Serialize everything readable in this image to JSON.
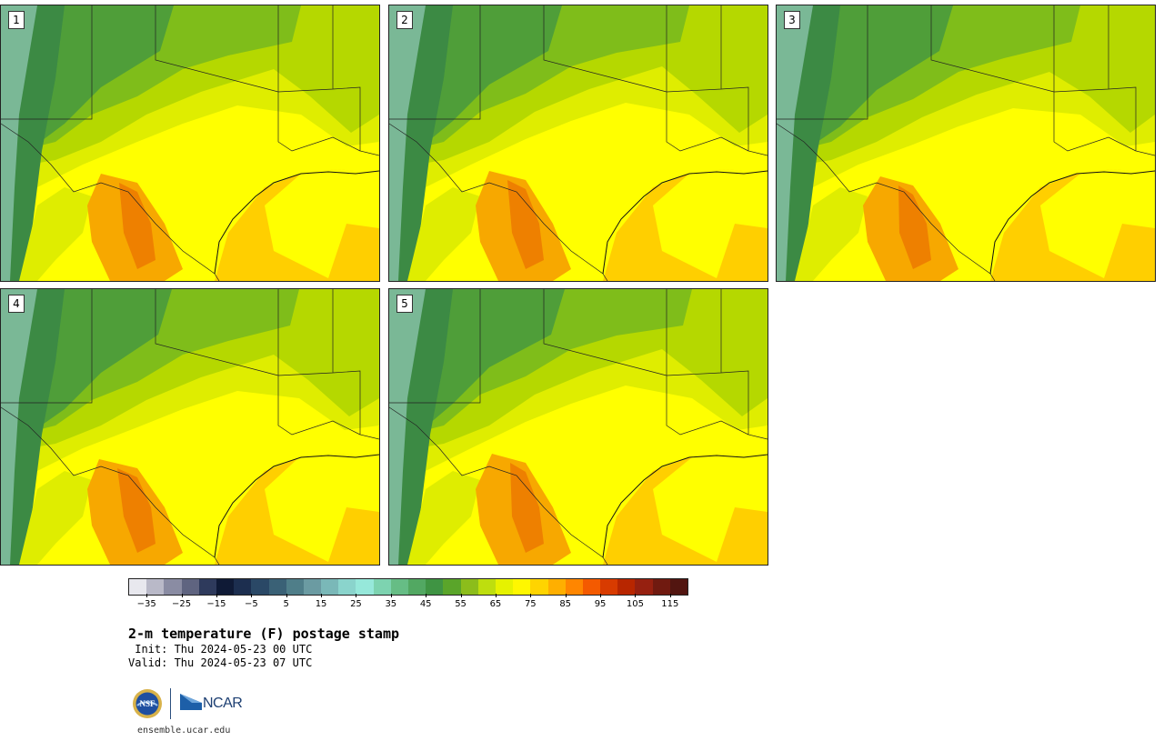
{
  "panels": [
    {
      "label": "1"
    },
    {
      "label": "2"
    },
    {
      "label": "3"
    },
    {
      "label": "4"
    },
    {
      "label": "5"
    }
  ],
  "colorbar": {
    "colors": [
      "#e8e8ee",
      "#b9b9c8",
      "#8a8ca3",
      "#5f6480",
      "#2e3a5c",
      "#0f1a36",
      "#1c2e4f",
      "#2a4866",
      "#3a6176",
      "#4f7e89",
      "#6b9ba2",
      "#7ab8b8",
      "#8ad4cc",
      "#96e8da",
      "#7dd3b0",
      "#66bd85",
      "#52a862",
      "#3f9443",
      "#5aa52a",
      "#8cbd1b",
      "#bede0e",
      "#e6f200",
      "#fff700",
      "#ffd400",
      "#ffaf00",
      "#ff8600",
      "#f45a00",
      "#d83b00",
      "#b82600",
      "#962010",
      "#701a10",
      "#521510"
    ],
    "ticks": [
      "−35",
      "−25",
      "−15",
      "−5",
      "5",
      "15",
      "25",
      "35",
      "45",
      "55",
      "65",
      "75",
      "85",
      "95",
      "105",
      "115"
    ],
    "min": -40,
    "max": 120
  },
  "title": "2-m temperature (F) postage stamp",
  "init": " Init: Thu 2024-05-23 00 UTC",
  "valid": "Valid: Thu 2024-05-23 07 UTC",
  "logos": {
    "nsf": "NSF",
    "ncar": "NCAR",
    "site": "ensemble.ucar.edu"
  },
  "map_colors": {
    "gulf": "#ffcf00",
    "warm": "#ffff00",
    "mild": "#dfed00",
    "cool": "#b5d800",
    "cold": "#7fbd1a",
    "colder": "#4f9e39",
    "mountain": "#3c8a44",
    "peaks": "#7ab896",
    "hot": "#f7a800",
    "hottest": "#ee8000"
  }
}
